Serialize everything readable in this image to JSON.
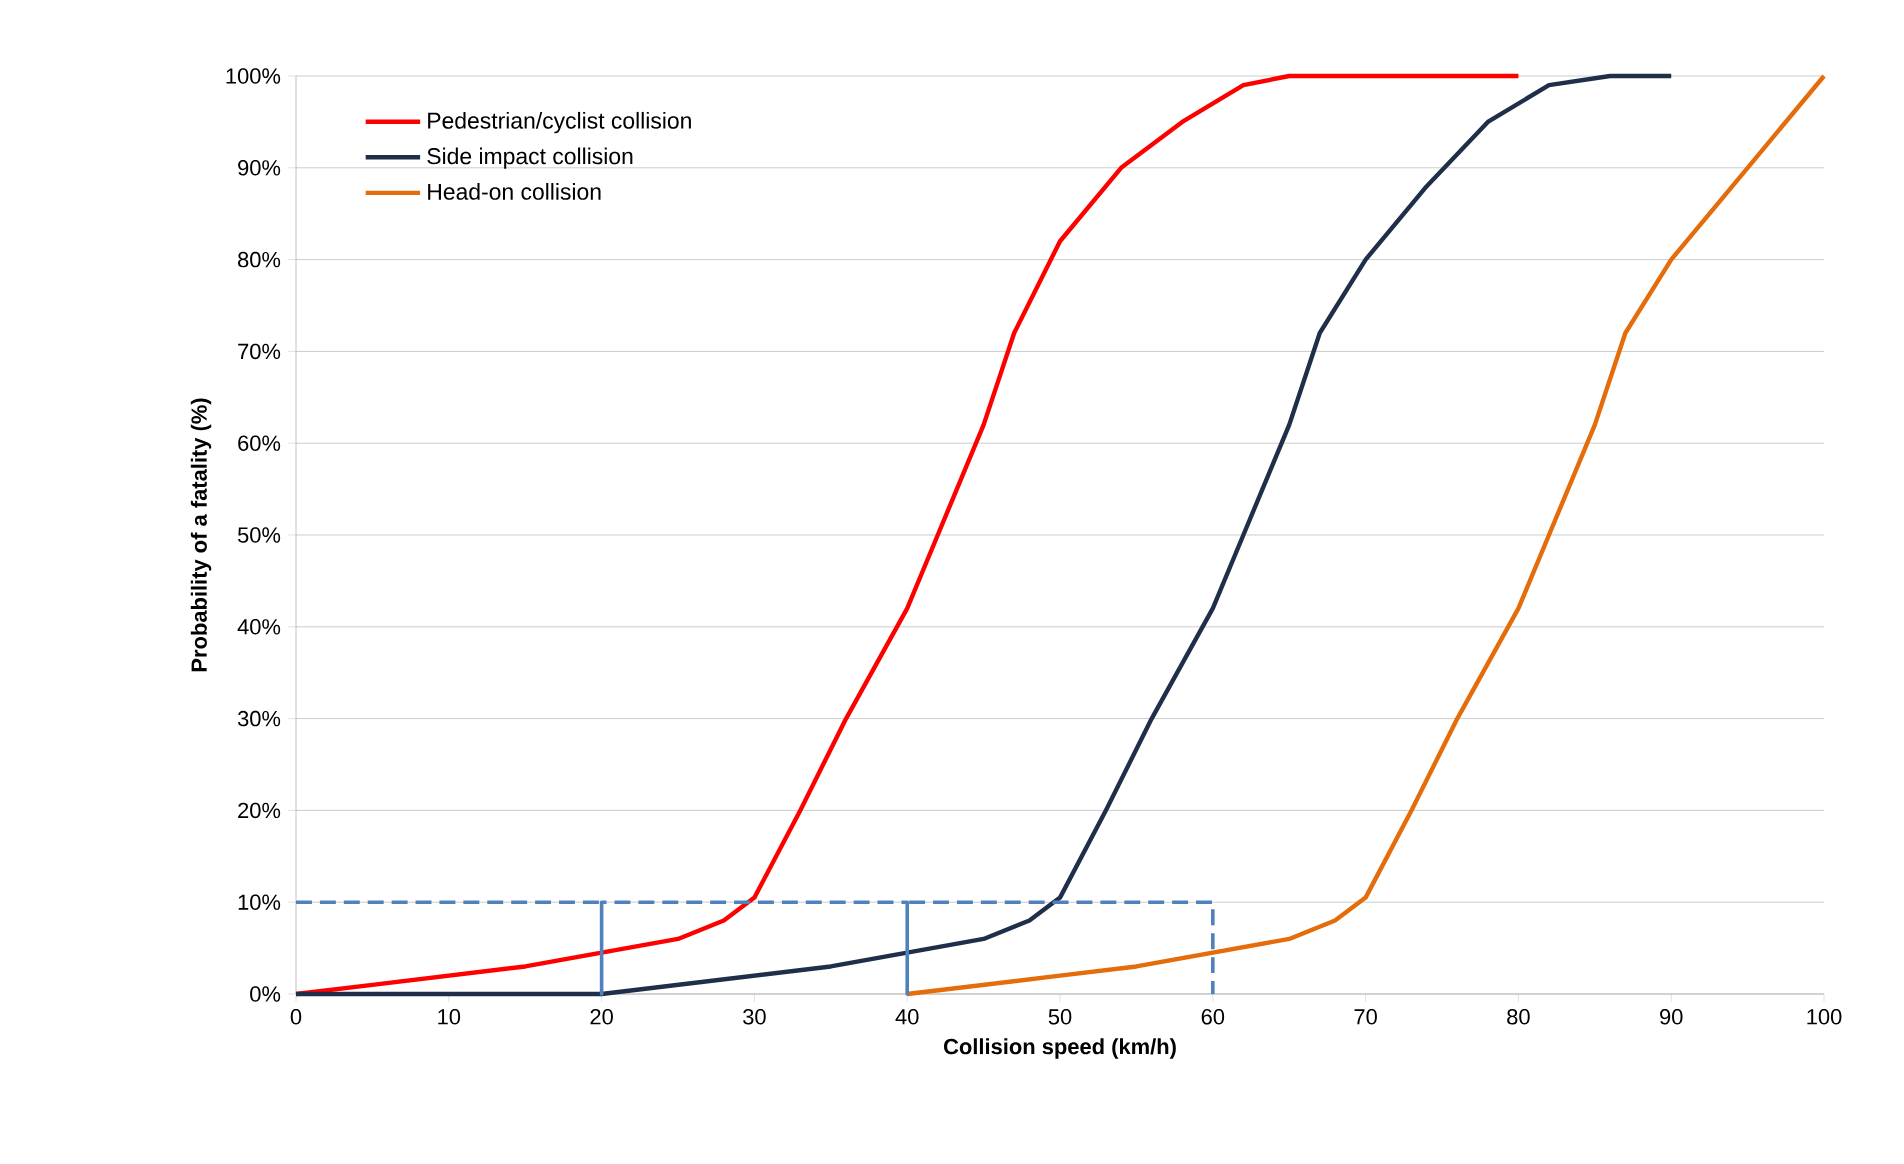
{
  "chart_data": {
    "type": "line",
    "xlabel": "Collision speed (km/h)",
    "ylabel": "Probability of a fatality (%)",
    "xlim": [
      0,
      100
    ],
    "ylim": [
      0,
      100
    ],
    "xticks": [
      0,
      10,
      20,
      30,
      40,
      50,
      60,
      70,
      80,
      90,
      100
    ],
    "yticks": [
      {
        "value": 0,
        "label": "0%"
      },
      {
        "value": 10,
        "label": "10%"
      },
      {
        "value": 20,
        "label": "20%"
      },
      {
        "value": 30,
        "label": "30%"
      },
      {
        "value": 40,
        "label": "40%"
      },
      {
        "value": 50,
        "label": "50%"
      },
      {
        "value": 60,
        "label": "60%"
      },
      {
        "value": 70,
        "label": "70%"
      },
      {
        "value": 80,
        "label": "80%"
      },
      {
        "value": 90,
        "label": "90%"
      },
      {
        "value": 100,
        "label": "100%"
      }
    ],
    "grid": "y",
    "legend": "top left",
    "marker": "none",
    "series": [
      {
        "name": "Pedestrian/cyclist collision",
        "color": "#ff0000",
        "line_style": "solid",
        "x": [
          0,
          5,
          10,
          15,
          20,
          25,
          28,
          30,
          33,
          36,
          40,
          42,
          45,
          47,
          50,
          54,
          58,
          62,
          65,
          70,
          75,
          80
        ],
        "values": [
          0,
          1,
          2,
          3,
          4.5,
          6,
          8,
          10.5,
          20,
          30,
          42,
          50,
          62,
          72,
          82,
          90,
          95,
          99,
          100,
          100,
          100,
          100
        ]
      },
      {
        "name": "Side impact collision",
        "color": "#1f2f4a",
        "line_style": "solid",
        "x": [
          0,
          10,
          20,
          25,
          30,
          35,
          40,
          45,
          48,
          50,
          53,
          56,
          60,
          62,
          65,
          67,
          70,
          74,
          78,
          82,
          86,
          90
        ],
        "values": [
          0,
          0,
          0,
          1,
          2,
          3,
          4.5,
          6,
          8,
          10.5,
          20,
          30,
          42,
          50,
          62,
          72,
          80,
          88,
          95,
          99,
          100,
          100
        ]
      },
      {
        "name": "Head-on collision",
        "color": "#e46c0a",
        "line_style": "solid",
        "x": [
          40,
          45,
          50,
          55,
          60,
          65,
          68,
          70,
          73,
          76,
          80,
          82,
          85,
          87,
          90,
          95,
          100
        ],
        "values": [
          0,
          1,
          2,
          3,
          4.5,
          6,
          8,
          10.5,
          20,
          30,
          42,
          50,
          62,
          72,
          80,
          90,
          100
        ]
      },
      {
        "color": "#4f81bd",
        "line_style": "dashed",
        "x": [
          0,
          20,
          20,
          20,
          40,
          40,
          40,
          60,
          60
        ],
        "values": [
          10,
          10,
          0,
          10,
          10,
          0,
          10,
          10,
          0
        ]
      }
    ]
  }
}
